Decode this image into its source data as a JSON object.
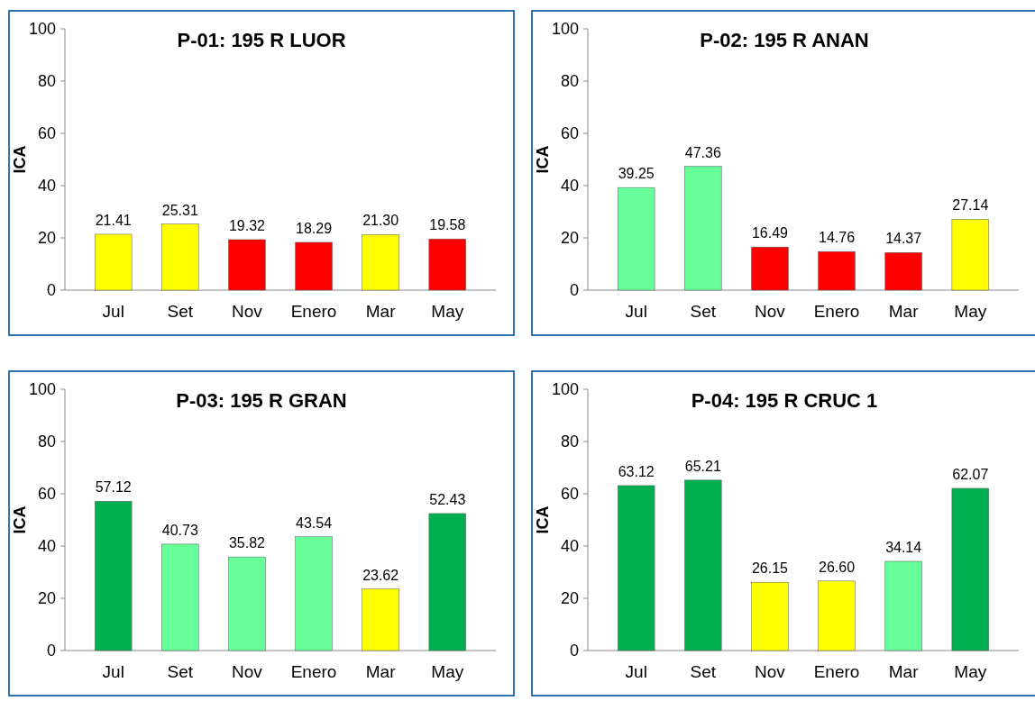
{
  "chart_data": [
    {
      "type": "bar",
      "title": "P-01: 195 R LUOR",
      "ylabel": "ICA",
      "categories": [
        "Jul",
        "Set",
        "Nov",
        "Enero",
        "Mar",
        "May"
      ],
      "values": [
        21.41,
        25.31,
        19.32,
        18.29,
        21.3,
        19.58
      ],
      "colors": [
        "#ffff00",
        "#ffff00",
        "#ff0000",
        "#ff0000",
        "#ffff00",
        "#ff0000"
      ],
      "value_labels": [
        "21.41",
        "25.31",
        "19.32",
        "18.29",
        "21.30",
        "19.58"
      ],
      "ylim": [
        0,
        100
      ],
      "yticks": [
        0,
        20,
        40,
        60,
        80,
        100
      ]
    },
    {
      "type": "bar",
      "title": "P-02: 195 R ANAN",
      "ylabel": "ICA",
      "categories": [
        "Jul",
        "Set",
        "Nov",
        "Enero",
        "Mar",
        "May"
      ],
      "values": [
        39.25,
        47.36,
        16.49,
        14.76,
        14.37,
        27.14
      ],
      "colors": [
        "#66ff99",
        "#66ff99",
        "#ff0000",
        "#ff0000",
        "#ff0000",
        "#ffff00"
      ],
      "value_labels": [
        "39.25",
        "47.36",
        "16.49",
        "14.76",
        "14.37",
        "27.14"
      ],
      "ylim": [
        0,
        100
      ],
      "yticks": [
        0,
        20,
        40,
        60,
        80,
        100
      ]
    },
    {
      "type": "bar",
      "title": "P-03: 195 R GRAN",
      "ylabel": "ICA",
      "categories": [
        "Jul",
        "Set",
        "Nov",
        "Enero",
        "Mar",
        "May"
      ],
      "values": [
        57.12,
        40.73,
        35.82,
        43.54,
        23.62,
        52.43
      ],
      "colors": [
        "#00b050",
        "#66ff99",
        "#66ff99",
        "#66ff99",
        "#ffff00",
        "#00b050"
      ],
      "value_labels": [
        "57.12",
        "40.73",
        "35.82",
        "43.54",
        "23.62",
        "52.43"
      ],
      "ylim": [
        0,
        100
      ],
      "yticks": [
        0,
        20,
        40,
        60,
        80,
        100
      ]
    },
    {
      "type": "bar",
      "title": "P-04: 195 R CRUC 1",
      "ylabel": "ICA",
      "categories": [
        "Jul",
        "Set",
        "Nov",
        "Enero",
        "Mar",
        "May"
      ],
      "values": [
        63.12,
        65.21,
        26.15,
        26.6,
        34.14,
        62.07
      ],
      "colors": [
        "#00b050",
        "#00b050",
        "#ffff00",
        "#ffff00",
        "#66ff99",
        "#00b050"
      ],
      "value_labels": [
        "63.12",
        "65.21",
        "26.15",
        "26.60",
        "34.14",
        "62.07"
      ],
      "ylim": [
        0,
        100
      ],
      "yticks": [
        0,
        20,
        40,
        60,
        80,
        100
      ]
    }
  ]
}
